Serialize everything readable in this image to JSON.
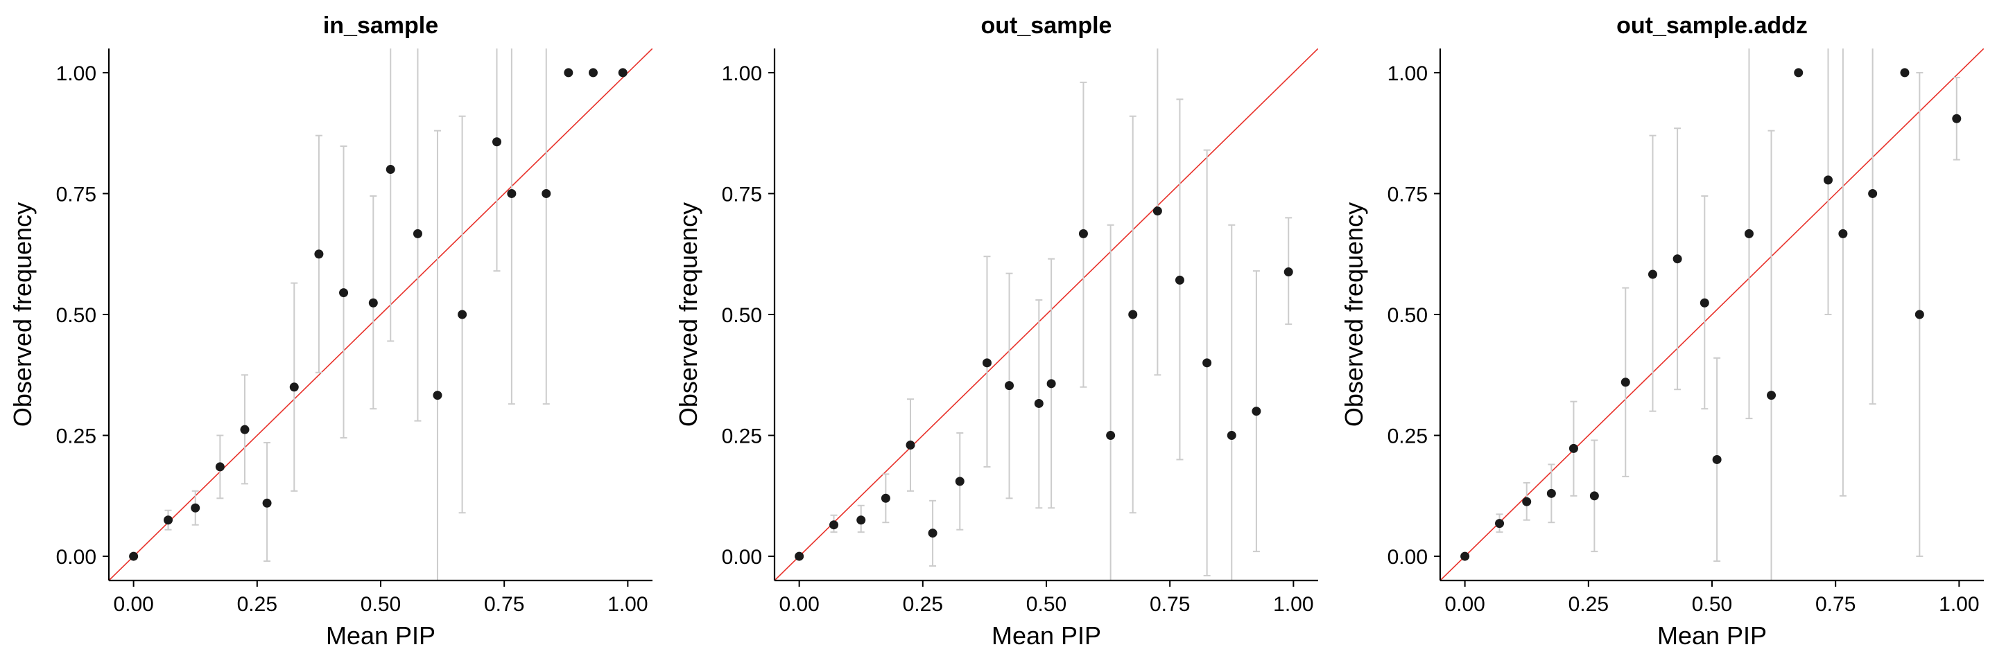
{
  "colors": {
    "background": "#ffffff",
    "point": "#1a1a1a",
    "errorbar": "#cccccc",
    "diagonal": "#e8312a",
    "axis": "#000000"
  },
  "chart_data": [
    {
      "type": "scatter",
      "title": "in_sample",
      "xlabel": "Mean PIP",
      "ylabel": "Observed frequency",
      "xlim": [
        -0.05,
        1.05
      ],
      "ylim": [
        -0.05,
        1.05
      ],
      "xticks": [
        "0.00",
        "0.25",
        "0.50",
        "0.75",
        "1.00"
      ],
      "yticks": [
        "0.00",
        "0.25",
        "0.50",
        "0.75",
        "1.00"
      ],
      "reference_line": "y = x",
      "points": [
        {
          "x": 0.0,
          "y": 0.0,
          "lo": 0.0,
          "hi": 0.0
        },
        {
          "x": 0.07,
          "y": 0.075,
          "lo": 0.055,
          "hi": 0.095
        },
        {
          "x": 0.125,
          "y": 0.1,
          "lo": 0.065,
          "hi": 0.135
        },
        {
          "x": 0.175,
          "y": 0.185,
          "lo": 0.12,
          "hi": 0.25
        },
        {
          "x": 0.225,
          "y": 0.262,
          "lo": 0.15,
          "hi": 0.375
        },
        {
          "x": 0.27,
          "y": 0.11,
          "lo": -0.01,
          "hi": 0.235
        },
        {
          "x": 0.325,
          "y": 0.35,
          "lo": 0.135,
          "hi": 0.565
        },
        {
          "x": 0.375,
          "y": 0.625,
          "lo": 0.38,
          "hi": 0.87
        },
        {
          "x": 0.425,
          "y": 0.545,
          "lo": 0.245,
          "hi": 0.848
        },
        {
          "x": 0.485,
          "y": 0.524,
          "lo": 0.305,
          "hi": 0.745
        },
        {
          "x": 0.52,
          "y": 0.8,
          "lo": 0.445,
          "hi": 1.1
        },
        {
          "x": 0.575,
          "y": 0.667,
          "lo": 0.28,
          "hi": 1.1
        },
        {
          "x": 0.615,
          "y": 0.333,
          "lo": -0.05,
          "hi": 0.88
        },
        {
          "x": 0.665,
          "y": 0.5,
          "lo": 0.09,
          "hi": 0.91
        },
        {
          "x": 0.735,
          "y": 0.857,
          "lo": 0.59,
          "hi": 1.1
        },
        {
          "x": 0.765,
          "y": 0.75,
          "lo": 0.315,
          "hi": 1.1
        },
        {
          "x": 0.835,
          "y": 0.75,
          "lo": 0.315,
          "hi": 1.1
        },
        {
          "x": 0.88,
          "y": 1.0,
          "lo": 1.0,
          "hi": 1.0
        },
        {
          "x": 0.93,
          "y": 1.0,
          "lo": 1.0,
          "hi": 1.0
        },
        {
          "x": 0.99,
          "y": 1.0,
          "lo": 1.0,
          "hi": 1.0
        }
      ]
    },
    {
      "type": "scatter",
      "title": "out_sample",
      "xlabel": "Mean PIP",
      "ylabel": "Observed frequency",
      "xlim": [
        -0.05,
        1.05
      ],
      "ylim": [
        -0.05,
        1.05
      ],
      "xticks": [
        "0.00",
        "0.25",
        "0.50",
        "0.75",
        "1.00"
      ],
      "yticks": [
        "0.00",
        "0.25",
        "0.50",
        "0.75",
        "1.00"
      ],
      "reference_line": "y = x",
      "points": [
        {
          "x": 0.0,
          "y": 0.0,
          "lo": 0.0,
          "hi": 0.0
        },
        {
          "x": 0.07,
          "y": 0.065,
          "lo": 0.05,
          "hi": 0.085
        },
        {
          "x": 0.125,
          "y": 0.075,
          "lo": 0.05,
          "hi": 0.105
        },
        {
          "x": 0.175,
          "y": 0.12,
          "lo": 0.07,
          "hi": 0.17
        },
        {
          "x": 0.225,
          "y": 0.23,
          "lo": 0.135,
          "hi": 0.325
        },
        {
          "x": 0.27,
          "y": 0.048,
          "lo": -0.02,
          "hi": 0.115
        },
        {
          "x": 0.325,
          "y": 0.155,
          "lo": 0.055,
          "hi": 0.255
        },
        {
          "x": 0.38,
          "y": 0.4,
          "lo": 0.185,
          "hi": 0.62
        },
        {
          "x": 0.425,
          "y": 0.353,
          "lo": 0.12,
          "hi": 0.585
        },
        {
          "x": 0.485,
          "y": 0.316,
          "lo": 0.1,
          "hi": 0.53
        },
        {
          "x": 0.51,
          "y": 0.357,
          "lo": 0.1,
          "hi": 0.615
        },
        {
          "x": 0.575,
          "y": 0.667,
          "lo": 0.35,
          "hi": 0.98
        },
        {
          "x": 0.63,
          "y": 0.25,
          "lo": -0.05,
          "hi": 0.685
        },
        {
          "x": 0.675,
          "y": 0.5,
          "lo": 0.09,
          "hi": 0.91
        },
        {
          "x": 0.725,
          "y": 0.714,
          "lo": 0.375,
          "hi": 1.1
        },
        {
          "x": 0.77,
          "y": 0.571,
          "lo": 0.2,
          "hi": 0.945
        },
        {
          "x": 0.825,
          "y": 0.4,
          "lo": -0.04,
          "hi": 0.84
        },
        {
          "x": 0.875,
          "y": 0.25,
          "lo": -0.05,
          "hi": 0.685
        },
        {
          "x": 0.925,
          "y": 0.3,
          "lo": 0.01,
          "hi": 0.59
        },
        {
          "x": 0.99,
          "y": 0.588,
          "lo": 0.48,
          "hi": 0.7
        }
      ]
    },
    {
      "type": "scatter",
      "title": "out_sample.addz",
      "xlabel": "Mean PIP",
      "ylabel": "Observed frequency",
      "xlim": [
        -0.05,
        1.05
      ],
      "ylim": [
        -0.05,
        1.05
      ],
      "xticks": [
        "0.00",
        "0.25",
        "0.50",
        "0.75",
        "1.00"
      ],
      "yticks": [
        "0.00",
        "0.25",
        "0.50",
        "0.75",
        "1.00"
      ],
      "reference_line": "y = x",
      "points": [
        {
          "x": 0.0,
          "y": 0.0,
          "lo": 0.0,
          "hi": 0.0
        },
        {
          "x": 0.07,
          "y": 0.068,
          "lo": 0.05,
          "hi": 0.087
        },
        {
          "x": 0.125,
          "y": 0.113,
          "lo": 0.075,
          "hi": 0.152
        },
        {
          "x": 0.175,
          "y": 0.13,
          "lo": 0.07,
          "hi": 0.19
        },
        {
          "x": 0.22,
          "y": 0.223,
          "lo": 0.125,
          "hi": 0.32
        },
        {
          "x": 0.262,
          "y": 0.125,
          "lo": 0.01,
          "hi": 0.24
        },
        {
          "x": 0.325,
          "y": 0.36,
          "lo": 0.165,
          "hi": 0.555
        },
        {
          "x": 0.38,
          "y": 0.583,
          "lo": 0.3,
          "hi": 0.87
        },
        {
          "x": 0.43,
          "y": 0.615,
          "lo": 0.345,
          "hi": 0.885
        },
        {
          "x": 0.485,
          "y": 0.524,
          "lo": 0.305,
          "hi": 0.745
        },
        {
          "x": 0.51,
          "y": 0.2,
          "lo": -0.01,
          "hi": 0.41
        },
        {
          "x": 0.575,
          "y": 0.667,
          "lo": 0.285,
          "hi": 1.1
        },
        {
          "x": 0.62,
          "y": 0.333,
          "lo": -0.05,
          "hi": 0.88
        },
        {
          "x": 0.675,
          "y": 1.0,
          "lo": 1.0,
          "hi": 1.0
        },
        {
          "x": 0.735,
          "y": 0.778,
          "lo": 0.5,
          "hi": 1.1
        },
        {
          "x": 0.765,
          "y": 0.667,
          "lo": 0.125,
          "hi": 1.1
        },
        {
          "x": 0.825,
          "y": 0.75,
          "lo": 0.315,
          "hi": 1.1
        },
        {
          "x": 0.89,
          "y": 1.0,
          "lo": 1.0,
          "hi": 1.0
        },
        {
          "x": 0.92,
          "y": 0.5,
          "lo": 0.0,
          "hi": 1.0
        },
        {
          "x": 0.995,
          "y": 0.905,
          "lo": 0.82,
          "hi": 0.99
        }
      ]
    }
  ]
}
